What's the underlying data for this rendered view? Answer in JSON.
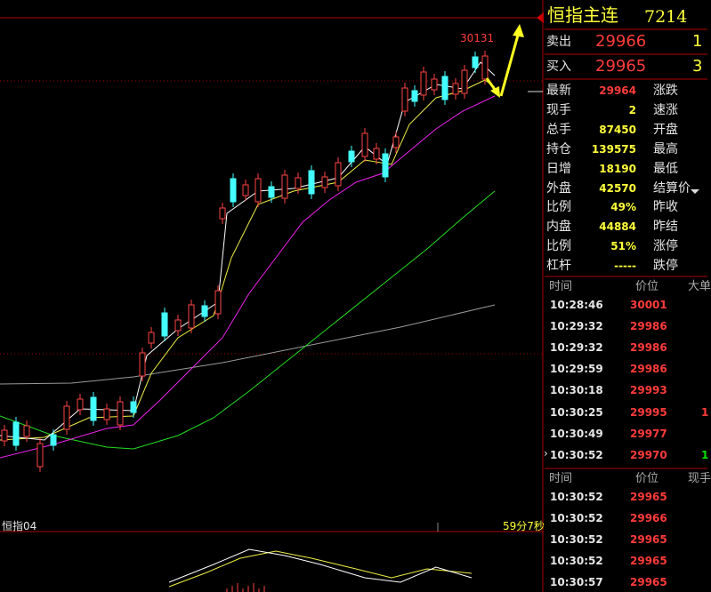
{
  "header": {
    "title": "恒指主连",
    "code": "7214"
  },
  "order_book": [
    {
      "label": "卖出",
      "price": "29966",
      "volume": "1"
    },
    {
      "label": "买入",
      "price": "29965",
      "volume": "3"
    }
  ],
  "quote": [
    {
      "label": "最新",
      "value": "29964",
      "label2": "涨跌"
    },
    {
      "label": "现手",
      "value": "2",
      "label2": "速涨"
    },
    {
      "label": "总手",
      "value": "87450",
      "label2": "开盘"
    },
    {
      "label": "持仓",
      "value": "139575",
      "label2": "最高"
    },
    {
      "label": "日增",
      "value": "18190",
      "label2": "最低"
    },
    {
      "label": "外盘",
      "value": "42570",
      "label2": "结算价"
    },
    {
      "label": "比例",
      "value": "49%",
      "label2": "昨收"
    },
    {
      "label": "内盘",
      "value": "44884",
      "label2": "昨结"
    },
    {
      "label": "比例",
      "value": "51%",
      "label2": "涨停"
    },
    {
      "label": "杠杆",
      "value": "-----",
      "label2": "跌停"
    }
  ],
  "ticks": {
    "headers": [
      "时间",
      "价位",
      "大单"
    ],
    "rows": [
      {
        "time": "10:28:46",
        "price": "30001"
      },
      {
        "time": "10:29:32",
        "price": "29986"
      },
      {
        "time": "10:29:32",
        "price": "29986"
      },
      {
        "time": "10:29:59",
        "price": "29986"
      },
      {
        "time": "10:30:18",
        "price": "29993"
      },
      {
        "time": "10:30:25",
        "price": "29995",
        "size": "1"
      },
      {
        "time": "10:30:49",
        "price": "29977"
      },
      {
        "time": "10:30:52",
        "price": "29970",
        "size": "1"
      }
    ]
  },
  "trades": {
    "headers": [
      "时间",
      "价位",
      "现手"
    ],
    "rows": [
      {
        "time": "10:30:52",
        "price": "29965"
      },
      {
        "time": "10:30:52",
        "price": "29966"
      },
      {
        "time": "10:30:52",
        "price": "29965"
      },
      {
        "time": "10:30:52",
        "price": "29965"
      },
      {
        "time": "10:30:57",
        "price": "29965"
      }
    ]
  },
  "chart": {
    "high_label": "30131",
    "symbol": "恒指04",
    "countdown": "59分7秒"
  }
}
